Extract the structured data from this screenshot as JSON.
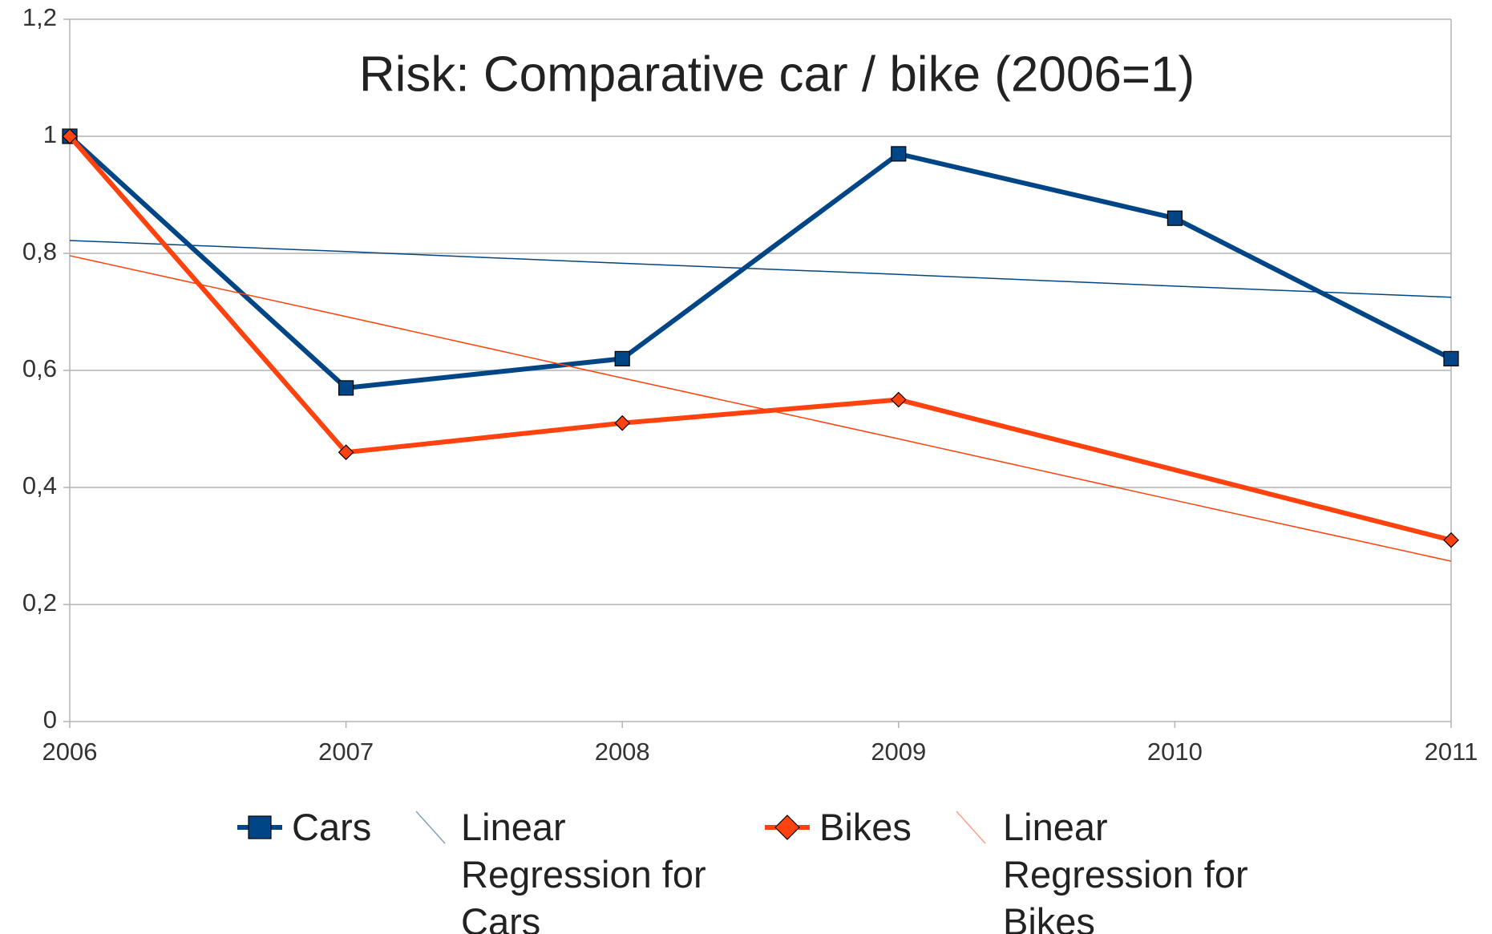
{
  "chart_data": {
    "type": "line",
    "title": "Risk: Comparative car / bike (2006=1)",
    "categories": [
      "2006",
      "2007",
      "2008",
      "2009",
      "2010",
      "2011"
    ],
    "series": [
      {
        "name": "Cars",
        "color": "#004586",
        "marker": "square",
        "values": [
          1,
          0.57,
          0.62,
          0.97,
          0.86,
          0.62
        ]
      },
      {
        "name": "Linear Regression for Cars",
        "color": "#004586",
        "trendline": true,
        "values": [
          0.822,
          0.803,
          0.783,
          0.764,
          0.744,
          0.725
        ]
      },
      {
        "name": "Bikes",
        "color": "#ff420e",
        "marker": "diamond",
        "values": [
          1,
          0.46,
          0.51,
          0.55,
          null,
          0.31
        ]
      },
      {
        "name": "Linear Regression for Bikes",
        "color": "#ff420e",
        "trendline": true,
        "values": [
          0.796,
          0.692,
          0.587,
          0.483,
          0.378,
          0.274
        ]
      }
    ],
    "ylim": [
      0,
      1.2
    ],
    "yticks": [
      0,
      {
        "value": 0.2,
        "label": "0,2"
      },
      {
        "value": 0.4,
        "label": "0,4"
      },
      {
        "value": 0.6,
        "label": "0,6"
      },
      {
        "value": 0.8,
        "label": "0,8"
      },
      1,
      {
        "value": 1.2,
        "label": "1,2"
      }
    ],
    "grid": true,
    "legend": "bottom"
  }
}
